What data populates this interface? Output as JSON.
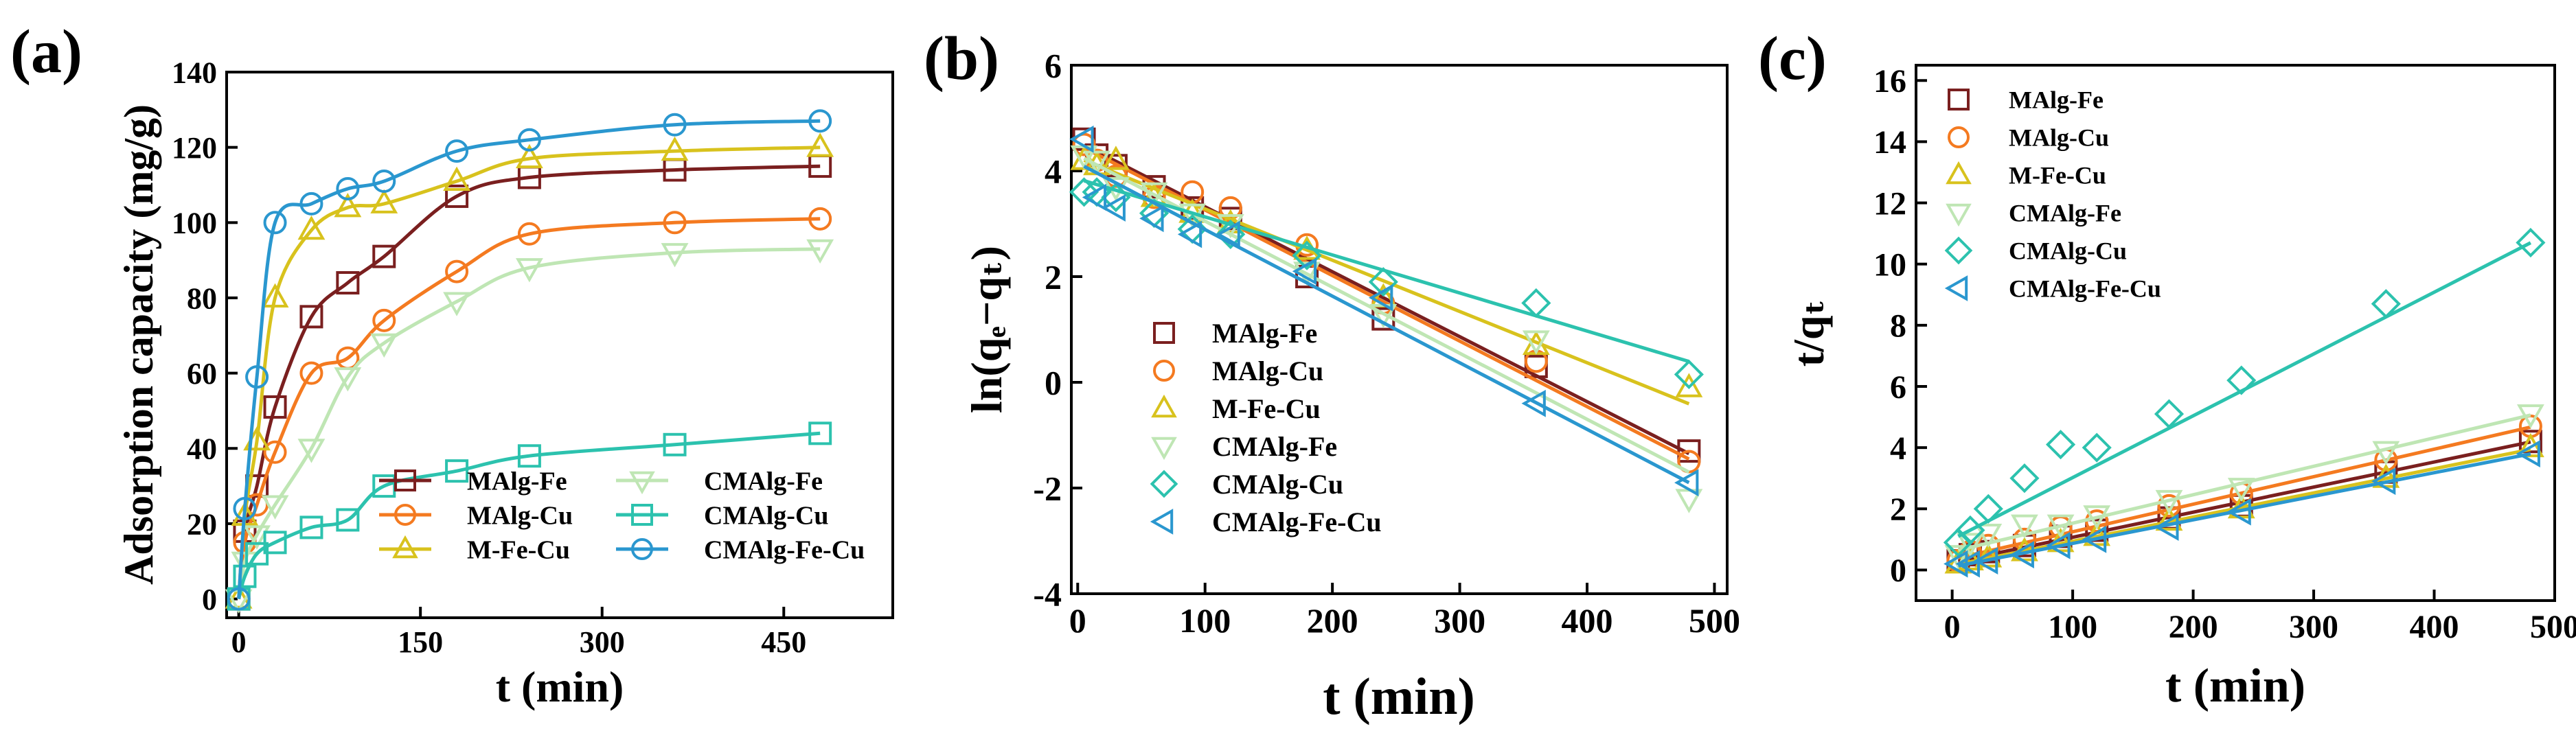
{
  "chart_data": [
    {
      "panel_label": "(a)",
      "type": "scatter",
      "xlabel": "t (min)",
      "ylabel": "Adsorption capacity (mg/g)",
      "xlim": [
        -10,
        540
      ],
      "ylim": [
        -5,
        140
      ],
      "xticks": [
        "0",
        "150",
        "300",
        "450"
      ],
      "xtick_values": [
        0,
        150,
        300,
        450
      ],
      "yticks": [
        "0",
        "20",
        "40",
        "60",
        "80",
        "100",
        "120",
        "140"
      ],
      "ytick_values": [
        0,
        20,
        40,
        60,
        80,
        100,
        120,
        140
      ],
      "x": [
        0,
        5,
        15,
        30,
        60,
        90,
        120,
        180,
        240,
        360,
        480
      ],
      "legend_position": "bottom-right",
      "series": [
        {
          "name": "MAlg-Fe",
          "marker": "square",
          "color": "#7a1f1f",
          "values": [
            0,
            18,
            30,
            51,
            75,
            84,
            91,
            107,
            112,
            114,
            115
          ]
        },
        {
          "name": "MAlg-Cu",
          "marker": "circle",
          "color": "#f47a20",
          "values": [
            0,
            15,
            25,
            39,
            60,
            64,
            74,
            87,
            97,
            100,
            101
          ]
        },
        {
          "name": "M-Fe-Cu",
          "marker": "triangle-up",
          "color": "#d8c21d",
          "values": [
            0,
            22,
            42,
            80,
            98,
            104,
            105,
            111,
            117,
            119,
            120
          ]
        },
        {
          "name": "CMAlg-Fe",
          "marker": "triangle-down",
          "color": "#bfe6b4",
          "values": [
            0,
            10,
            17,
            25,
            40,
            59,
            68,
            79,
            88,
            92,
            93
          ]
        },
        {
          "name": "CMAlg-Cu",
          "marker": "square",
          "color": "#2cc2ae",
          "values": [
            0,
            6,
            12,
            15,
            19,
            21,
            30,
            34,
            38,
            41,
            44
          ]
        },
        {
          "name": "CMAlg-Fe-Cu",
          "marker": "circle",
          "color": "#2a97cf",
          "values": [
            0,
            24,
            59,
            100,
            105,
            109,
            111,
            119,
            122,
            126,
            127
          ]
        }
      ]
    },
    {
      "panel_label": "(b)",
      "type": "scatter",
      "xlabel": "t (min)",
      "ylabel": "ln(qₑ−qₜ)",
      "xlim": [
        -5,
        510
      ],
      "ylim": [
        -4,
        6
      ],
      "xticks": [
        "0",
        "100",
        "200",
        "300",
        "400",
        "500"
      ],
      "xtick_values": [
        0,
        100,
        200,
        300,
        400,
        500
      ],
      "yticks": [
        "-4",
        "-2",
        "0",
        "2",
        "4",
        "6"
      ],
      "ytick_values": [
        -4,
        -2,
        0,
        2,
        4,
        6
      ],
      "x": [
        5,
        15,
        30,
        60,
        90,
        120,
        180,
        240,
        360,
        480
      ],
      "legend_position": "center-left",
      "series": [
        {
          "name": "MAlg-Fe",
          "marker": "square",
          "color": "#7a1f1f",
          "values": [
            4.6,
            4.3,
            4.1,
            3.7,
            3.3,
            3.1,
            2.0,
            1.2,
            0.3,
            -1.3
          ],
          "fit": [
            4.55,
            -0.01229
          ]
        },
        {
          "name": "MAlg-Cu",
          "marker": "circle",
          "color": "#f47a20",
          "values": [
            4.5,
            4.2,
            3.9,
            3.5,
            3.6,
            3.3,
            2.6,
            1.5,
            0.4,
            -1.5
          ],
          "fit": [
            4.5,
            -0.0124
          ]
        },
        {
          "name": "M-Fe-Cu",
          "marker": "triangle-up",
          "color": "#d8c21d",
          "values": [
            4.2,
            4.1,
            4.2,
            3.5,
            3.2,
            3.0,
            2.5,
            1.6,
            0.7,
            -0.1
          ],
          "fit": [
            4.25,
            -0.0097
          ]
        },
        {
          "name": "CMAlg-Fe",
          "marker": "triangle-down",
          "color": "#bfe6b4",
          "values": [
            4.3,
            4.2,
            3.7,
            3.6,
            3.2,
            3.0,
            2.1,
            1.3,
            0.8,
            -2.2
          ],
          "fit": [
            4.3,
            -0.0125
          ]
        },
        {
          "name": "CMAlg-Cu",
          "marker": "diamond",
          "color": "#2cc2ae",
          "values": [
            3.6,
            3.6,
            3.5,
            3.2,
            2.9,
            2.8,
            2.4,
            1.9,
            1.5,
            0.15
          ],
          "fit": [
            3.85,
            -0.0072
          ]
        },
        {
          "name": "CMAlg-Fe-Cu",
          "marker": "triangle-left",
          "color": "#2a97cf",
          "values": [
            4.6,
            3.5,
            3.3,
            3.1,
            2.8,
            2.8,
            2.1,
            1.6,
            -0.4,
            -1.9
          ],
          "fit": [
            4.15,
            -0.0126
          ]
        }
      ]
    },
    {
      "panel_label": "(c)",
      "type": "scatter",
      "xlabel": "t (min)",
      "ylabel": "t/qₜ",
      "xlim": [
        -30,
        500
      ],
      "ylim": [
        -1,
        16.5
      ],
      "xticks": [
        "0",
        "100",
        "200",
        "300",
        "400",
        "500"
      ],
      "xtick_values": [
        0,
        100,
        200,
        300,
        400,
        500
      ],
      "yticks": [
        "0",
        "2",
        "4",
        "6",
        "8",
        "10",
        "12",
        "14",
        "16"
      ],
      "ytick_values": [
        0,
        2,
        4,
        6,
        8,
        10,
        12,
        14,
        16
      ],
      "x": [
        5,
        15,
        30,
        60,
        90,
        120,
        180,
        240,
        360,
        480
      ],
      "legend_position": "top-left",
      "series": [
        {
          "name": "MAlg-Fe",
          "marker": "square",
          "color": "#7a1f1f",
          "values": [
            0.3,
            0.5,
            0.6,
            0.8,
            1.1,
            1.3,
            1.7,
            2.1,
            3.2,
            4.2
          ],
          "fit": [
            0.25,
            0.0082
          ]
        },
        {
          "name": "MAlg-Cu",
          "marker": "circle",
          "color": "#f47a20",
          "values": [
            0.3,
            0.6,
            0.8,
            1.0,
            1.4,
            1.6,
            2.1,
            2.5,
            3.6,
            4.7
          ],
          "fit": [
            0.35,
            0.009
          ]
        },
        {
          "name": "M-Fe-Cu",
          "marker": "triangle-up",
          "color": "#d8c21d",
          "values": [
            0.2,
            0.3,
            0.4,
            0.6,
            0.9,
            1.1,
            1.6,
            2.0,
            3.0,
            4.0
          ],
          "fit": [
            0.15,
            0.0079
          ]
        },
        {
          "name": "CMAlg-Fe",
          "marker": "triangle-down",
          "color": "#bfe6b4",
          "values": [
            0.5,
            0.9,
            1.2,
            1.5,
            1.5,
            1.8,
            2.3,
            2.7,
            3.9,
            5.1
          ],
          "fit": [
            0.6,
            0.0093
          ]
        },
        {
          "name": "CMAlg-Cu",
          "marker": "diamond",
          "color": "#2cc2ae",
          "values": [
            0.9,
            1.3,
            2.0,
            3.0,
            4.1,
            4.0,
            5.1,
            6.2,
            8.7,
            10.7
          ],
          "fit": [
            1.0,
            0.0202
          ]
        },
        {
          "name": "CMAlg-Fe-Cu",
          "marker": "triangle-left",
          "color": "#2a97cf",
          "values": [
            0.2,
            0.2,
            0.3,
            0.5,
            0.8,
            1.0,
            1.4,
            1.9,
            2.9,
            3.8
          ],
          "fit": [
            0.1,
            0.0077
          ]
        }
      ]
    }
  ]
}
